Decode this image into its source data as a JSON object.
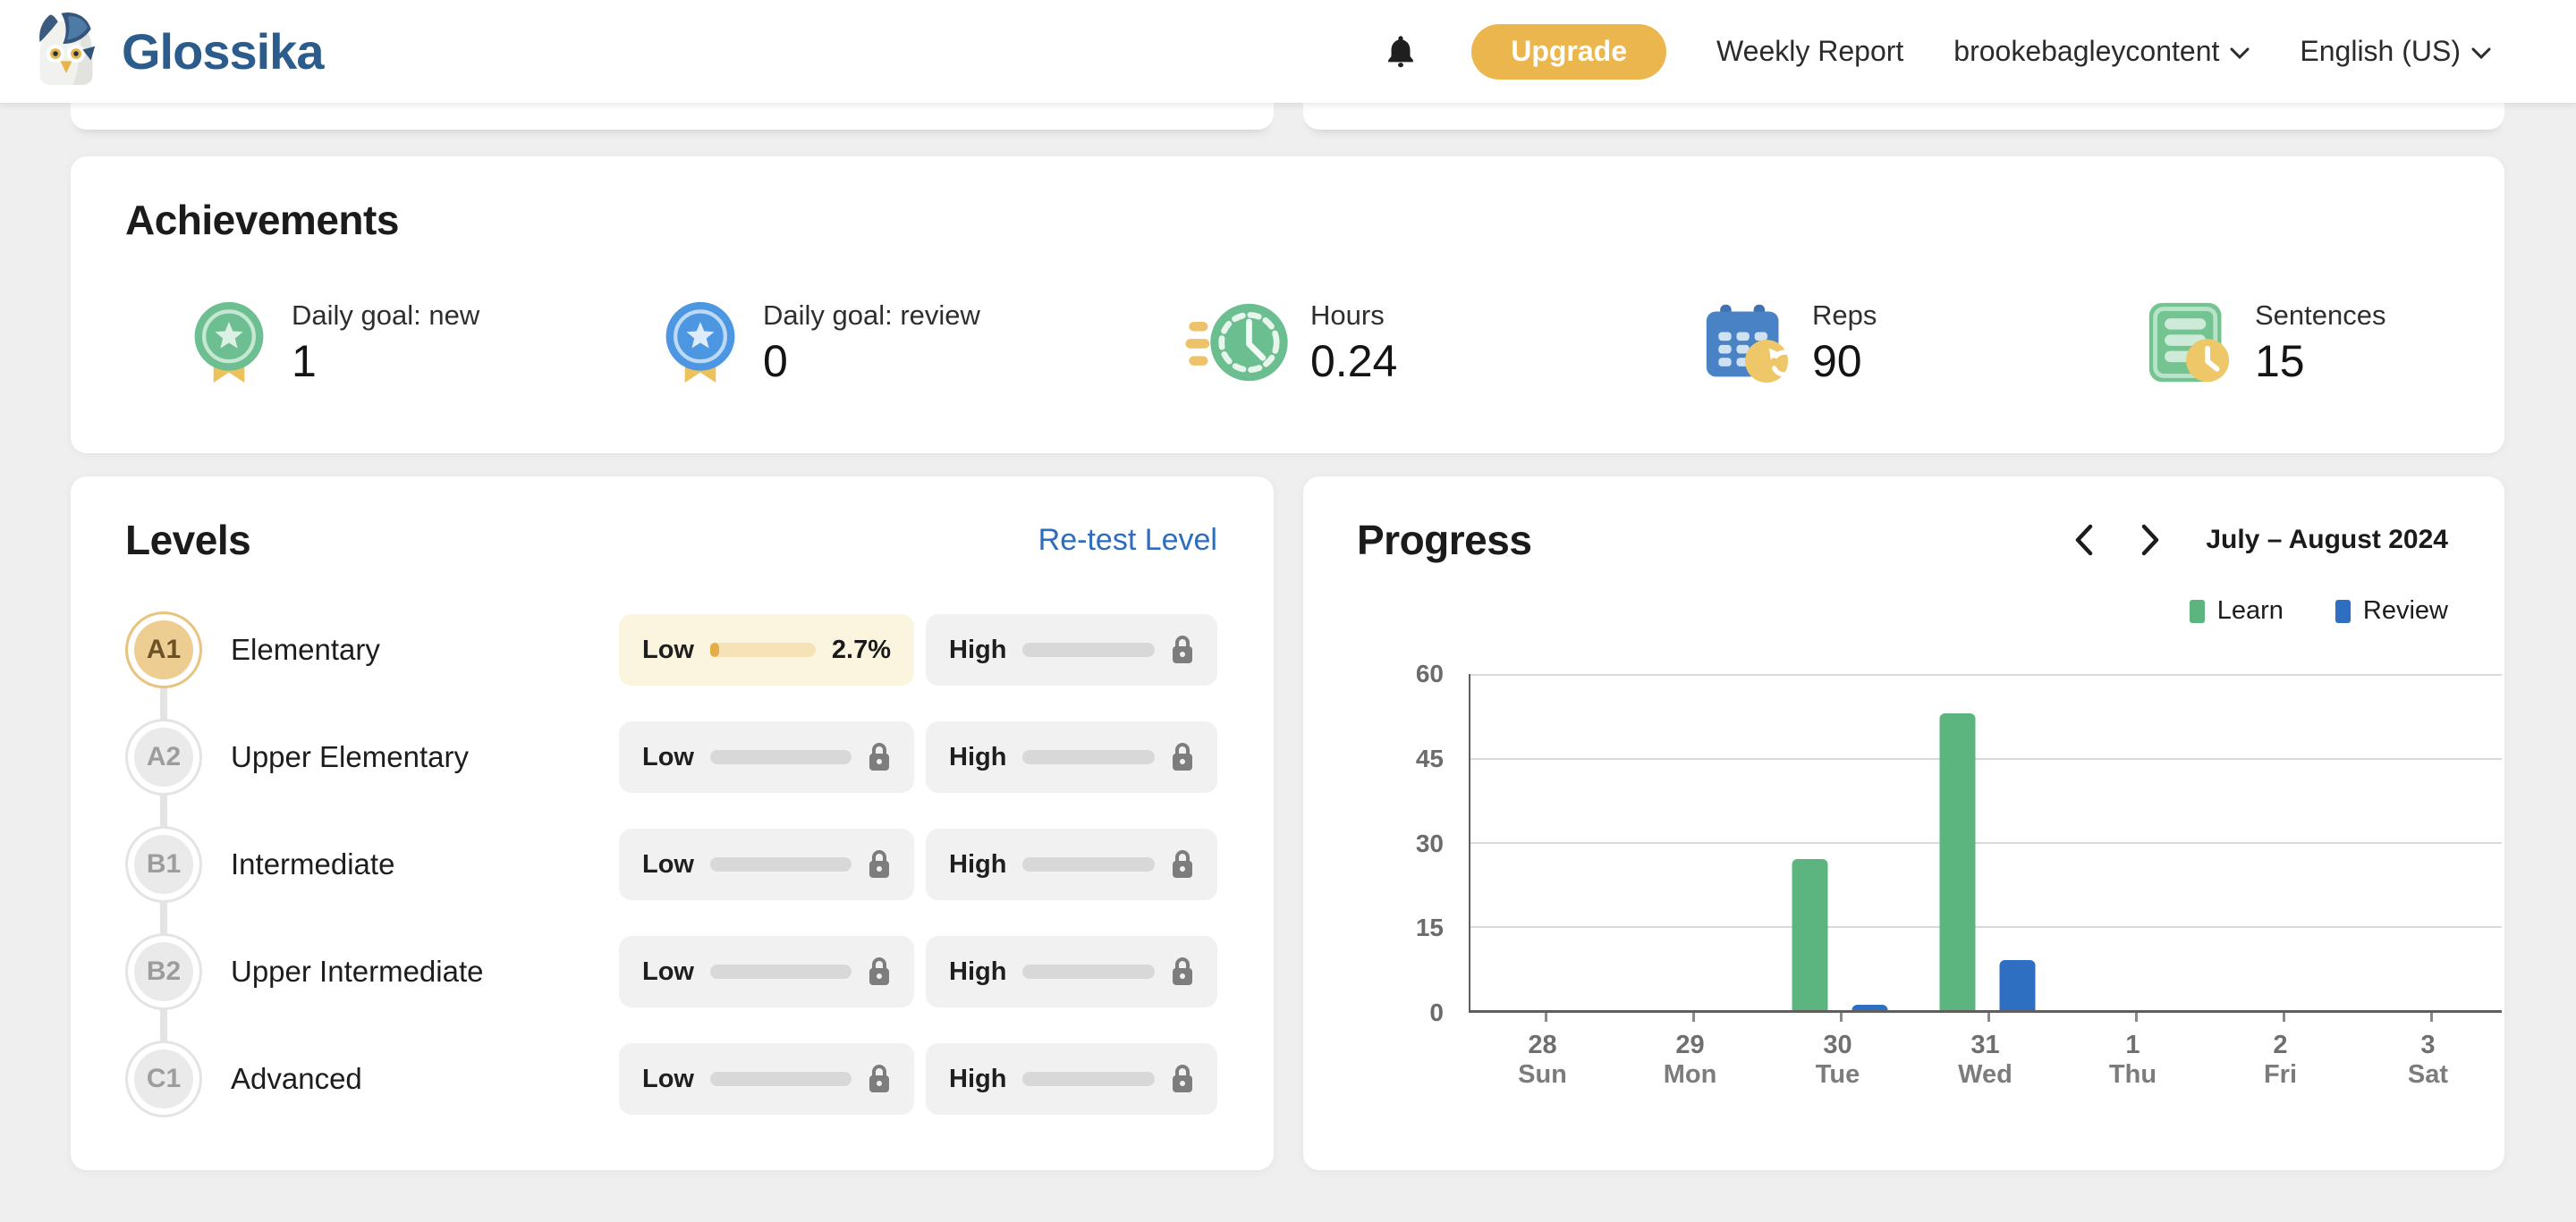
{
  "header": {
    "brand": "Glossika",
    "upgrade_label": "Upgrade",
    "weekly_report": "Weekly Report",
    "account": "brookebagleycontent",
    "language": "English (US)"
  },
  "achievements": {
    "title": "Achievements",
    "stats": [
      {
        "icon": "medal-star-green",
        "label": "Daily goal: new",
        "value": "1"
      },
      {
        "icon": "medal-star-blue",
        "label": "Daily goal: review",
        "value": "0"
      },
      {
        "icon": "clock-green",
        "label": "Hours",
        "value": "0.24"
      },
      {
        "icon": "calendar-repeat-blue",
        "label": "Reps",
        "value": "90"
      },
      {
        "icon": "sentences-clock-green",
        "label": "Sentences",
        "value": "15"
      }
    ]
  },
  "levels": {
    "title": "Levels",
    "retest_label": "Re-test Level",
    "rows": [
      {
        "code": "A1",
        "name": "Elementary",
        "low_label": "Low",
        "low_percent": "2.7%",
        "high_label": "High"
      },
      {
        "code": "A2",
        "name": "Upper Elementary",
        "low_label": "Low",
        "high_label": "High"
      },
      {
        "code": "B1",
        "name": "Intermediate",
        "low_label": "Low",
        "high_label": "High"
      },
      {
        "code": "B2",
        "name": "Upper Intermediate",
        "low_label": "Low",
        "high_label": "High"
      },
      {
        "code": "C1",
        "name": "Advanced",
        "low_label": "Low",
        "high_label": "High"
      }
    ]
  },
  "chart_data": {
    "type": "bar",
    "title": "Progress",
    "period": "July – August 2024",
    "categories": [
      "28",
      "29",
      "30",
      "31",
      "1",
      "2",
      "3"
    ],
    "weekdays": [
      "Sun",
      "Mon",
      "Tue",
      "Wed",
      "Thu",
      "Fri",
      "Sat"
    ],
    "series": [
      {
        "name": "Learn",
        "color": "#5cb57f",
        "values": [
          0,
          0,
          27,
          53,
          0,
          0,
          0
        ]
      },
      {
        "name": "Review",
        "color": "#2e6fc2",
        "values": [
          0,
          0,
          1,
          9,
          0,
          0,
          0
        ]
      }
    ],
    "ylim": [
      0,
      60
    ],
    "yticks": [
      0,
      15,
      30,
      45,
      60
    ],
    "grid": true,
    "legend_position": "top-right"
  },
  "colors": {
    "upgrade_yellow": "#ecb64e",
    "brand_blue": "#2b5c8c",
    "link_blue": "#2d6cbe",
    "learn_green": "#5cb57f",
    "review_blue": "#2e6fc2",
    "active_gold": "#e5ae45",
    "locked_gray": "#d8d8d8"
  }
}
